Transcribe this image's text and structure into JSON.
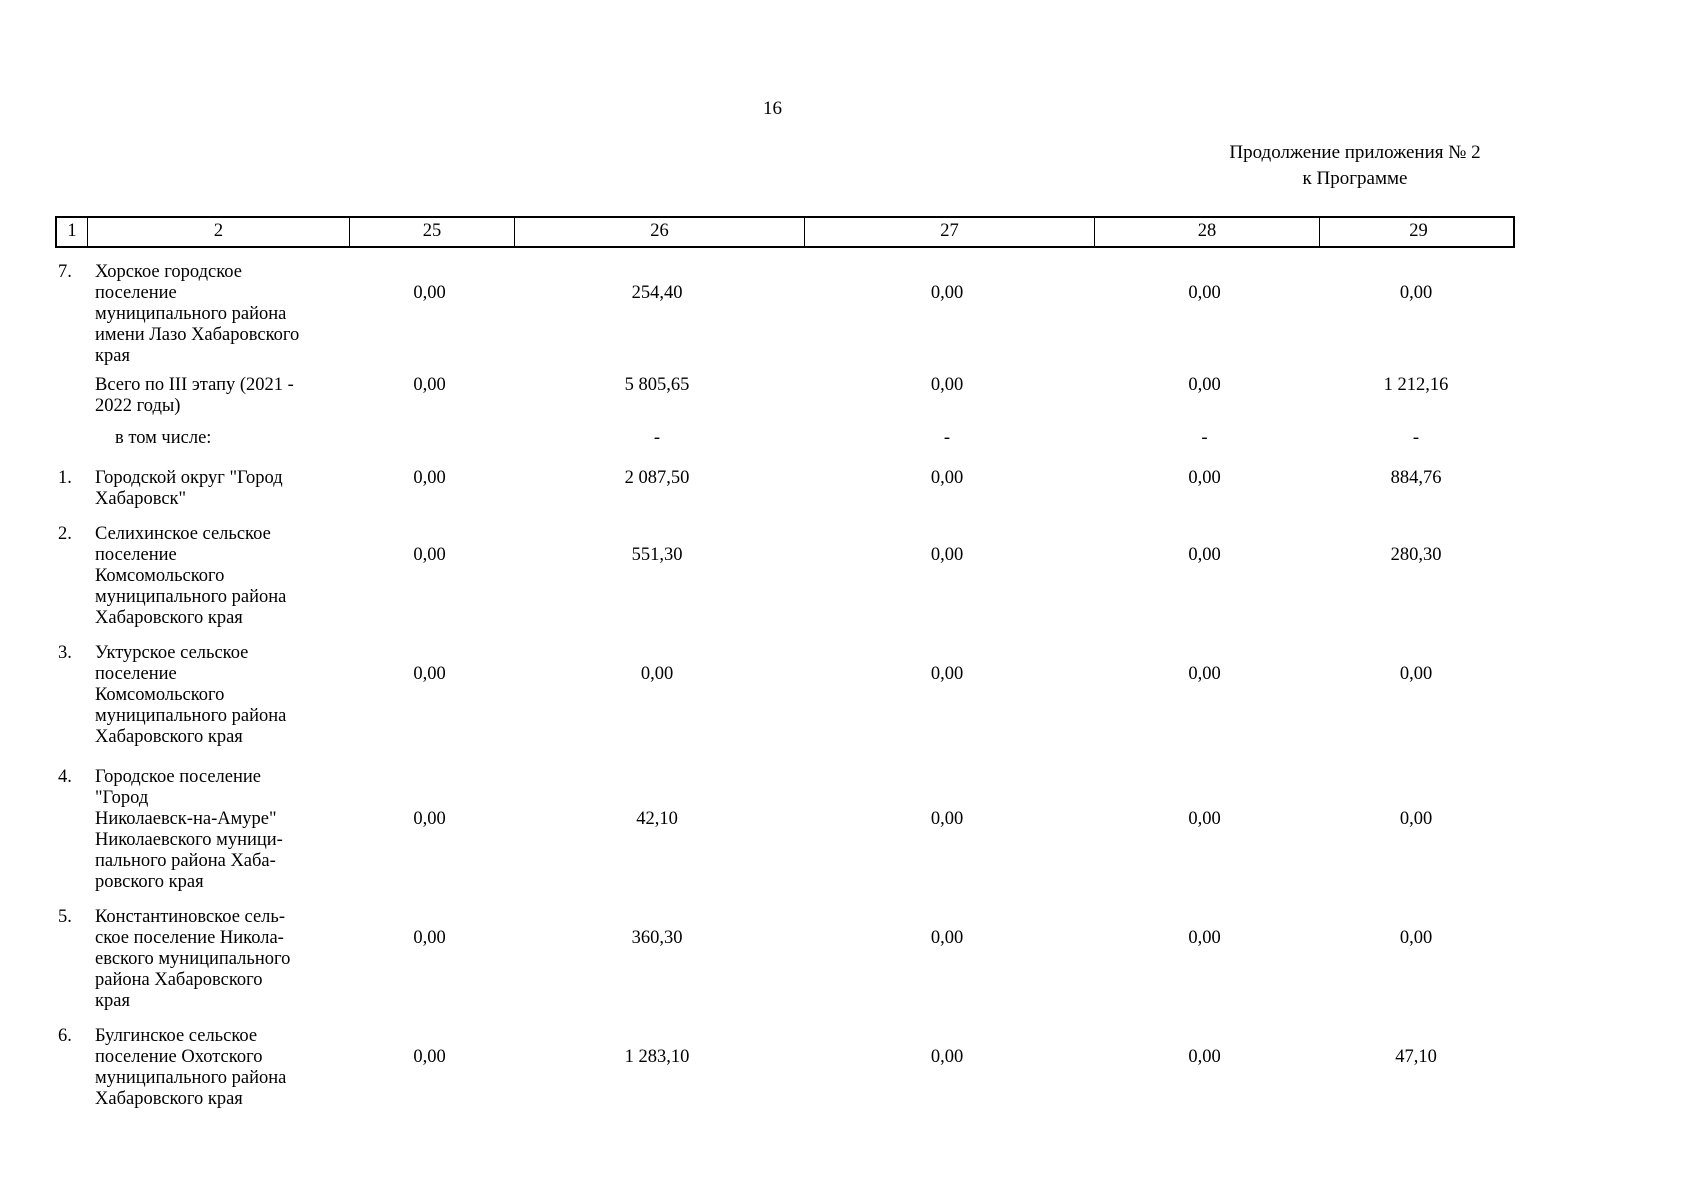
{
  "page": {
    "number": "16",
    "caption_line1": "Продолжение приложения № 2",
    "caption_line2": "к Программе"
  },
  "table": {
    "headers": [
      "1",
      "2",
      "25",
      "26",
      "27",
      "28",
      "29"
    ],
    "rows": [
      {
        "num": "7.",
        "name": "Хорское городское\nпоселение\nмуниципального района\nимени Лазо Хабаровского\nкрая",
        "c25": "0,00",
        "c26": "254,40",
        "c27": "0,00",
        "c28": "0,00",
        "c29": "0,00"
      },
      {
        "num": "",
        "name": "Всего по III этапу (2021 -\n2022 годы)",
        "c25": "0,00",
        "c26": "5 805,65",
        "c27": "0,00",
        "c28": "0,00",
        "c29": "1 212,16"
      },
      {
        "num": "",
        "name": "в том числе:",
        "c25": "",
        "c26": "-",
        "c27": "-",
        "c28": "-",
        "c29": "-"
      },
      {
        "num": "1.",
        "name": "Городской округ \"Город\nХабаровск\"",
        "c25": "0,00",
        "c26": "2 087,50",
        "c27": "0,00",
        "c28": "0,00",
        "c29": "884,76"
      },
      {
        "num": "2.",
        "name": "Селихинское сельское\nпоселение\nКомсомольского\nмуниципального района\nХабаровского края",
        "c25": "0,00",
        "c26": "551,30",
        "c27": "0,00",
        "c28": "0,00",
        "c29": "280,30"
      },
      {
        "num": "3.",
        "name": "Уктурское сельское\nпоселение\nКомсомольского\nмуниципального района\nХабаровского края",
        "c25": "0,00",
        "c26": "0,00",
        "c27": "0,00",
        "c28": "0,00",
        "c29": "0,00"
      },
      {
        "num": "4.",
        "name": "Городское поселение\n\"Город\nНиколаевск-на-Амуре\"\nНиколаевского муници-\nпального района Хаба-\nровского края",
        "c25": "0,00",
        "c26": "42,10",
        "c27": "0,00",
        "c28": "0,00",
        "c29": "0,00"
      },
      {
        "num": "5.",
        "name": "Константиновское сель-\nское поселение Никола-\nевского муниципального\nрайона Хабаровского\nкрая",
        "c25": "0,00",
        "c26": "360,30",
        "c27": "0,00",
        "c28": "0,00",
        "c29": "0,00"
      },
      {
        "num": "6.",
        "name": "Булгинское сельское\nпоселение Охотского\nмуниципального района\nХабаровского края",
        "c25": "0,00",
        "c26": "1 283,10",
        "c27": "0,00",
        "c28": "0,00",
        "c29": "47,10"
      }
    ]
  }
}
